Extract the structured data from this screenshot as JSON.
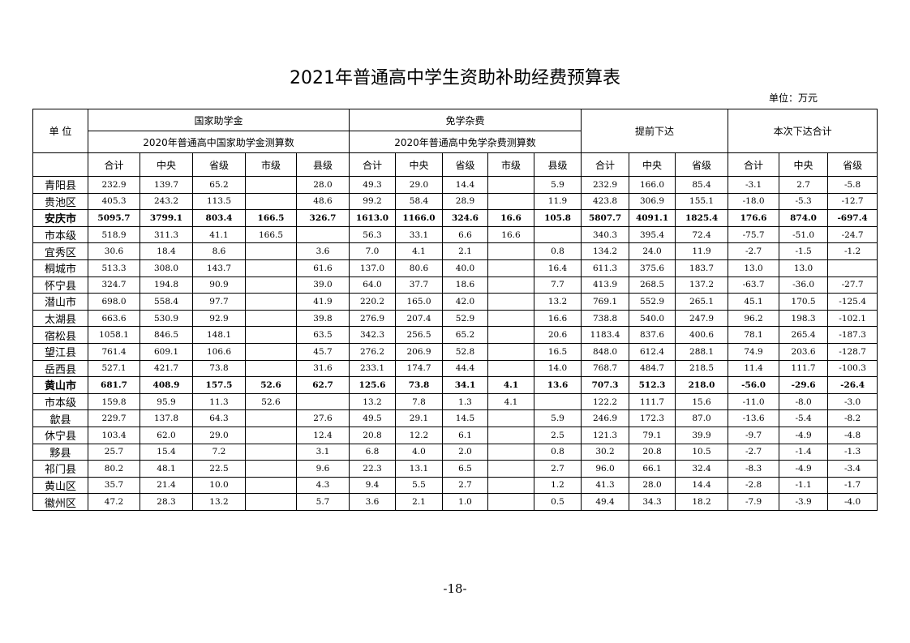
{
  "title": "2021年普通高中学生资助补助经费预算表",
  "unit": "单位：万元",
  "headers": {
    "unit_col": "单 位",
    "group1": "国家助学金",
    "group1_sub": "2020年普通高中国家助学金测算数",
    "group2": "免学杂费",
    "group2_sub": "2020年普通高中免学杂费测算数",
    "group3": "提前下达",
    "group4": "本次下达合计",
    "cols": [
      "合计",
      "中央",
      "省级",
      "市级",
      "县级",
      "合计",
      "中央",
      "省级",
      "市级",
      "县级",
      "合计",
      "中央",
      "省级",
      "合计",
      "中央",
      "省级"
    ]
  },
  "rows": [
    {
      "name": "青阳县",
      "bold": false,
      "v": [
        "232.9",
        "139.7",
        "65.2",
        "",
        "28.0",
        "49.3",
        "29.0",
        "14.4",
        "",
        "5.9",
        "232.9",
        "166.0",
        "85.4",
        "-3.1",
        "2.7",
        "-5.8"
      ]
    },
    {
      "name": "贵池区",
      "bold": false,
      "v": [
        "405.3",
        "243.2",
        "113.5",
        "",
        "48.6",
        "99.2",
        "58.4",
        "28.9",
        "",
        "11.9",
        "423.8",
        "306.9",
        "155.1",
        "-18.0",
        "-5.3",
        "-12.7"
      ]
    },
    {
      "name": "安庆市",
      "bold": true,
      "v": [
        "5095.7",
        "3799.1",
        "803.4",
        "166.5",
        "326.7",
        "1613.0",
        "1166.0",
        "324.6",
        "16.6",
        "105.8",
        "5807.7",
        "4091.1",
        "1825.4",
        "176.6",
        "874.0",
        "-697.4"
      ]
    },
    {
      "name": "市本级",
      "bold": false,
      "v": [
        "518.9",
        "311.3",
        "41.1",
        "166.5",
        "",
        "56.3",
        "33.1",
        "6.6",
        "16.6",
        "",
        "340.3",
        "395.4",
        "72.4",
        "-75.7",
        "-51.0",
        "-24.7"
      ]
    },
    {
      "name": "宜秀区",
      "bold": false,
      "v": [
        "30.6",
        "18.4",
        "8.6",
        "",
        "3.6",
        "7.0",
        "4.1",
        "2.1",
        "",
        "0.8",
        "134.2",
        "24.0",
        "11.9",
        "-2.7",
        "-1.5",
        "-1.2"
      ]
    },
    {
      "name": "桐城市",
      "bold": false,
      "v": [
        "513.3",
        "308.0",
        "143.7",
        "",
        "61.6",
        "137.0",
        "80.6",
        "40.0",
        "",
        "16.4",
        "611.3",
        "375.6",
        "183.7",
        "13.0",
        "13.0",
        ""
      ]
    },
    {
      "name": "怀宁县",
      "bold": false,
      "v": [
        "324.7",
        "194.8",
        "90.9",
        "",
        "39.0",
        "64.0",
        "37.7",
        "18.6",
        "",
        "7.7",
        "413.9",
        "268.5",
        "137.2",
        "-63.7",
        "-36.0",
        "-27.7"
      ]
    },
    {
      "name": "潜山市",
      "bold": false,
      "v": [
        "698.0",
        "558.4",
        "97.7",
        "",
        "41.9",
        "220.2",
        "165.0",
        "42.0",
        "",
        "13.2",
        "769.1",
        "552.9",
        "265.1",
        "45.1",
        "170.5",
        "-125.4"
      ]
    },
    {
      "name": "太湖县",
      "bold": false,
      "v": [
        "663.6",
        "530.9",
        "92.9",
        "",
        "39.8",
        "276.9",
        "207.4",
        "52.9",
        "",
        "16.6",
        "738.8",
        "540.0",
        "247.9",
        "96.2",
        "198.3",
        "-102.1"
      ]
    },
    {
      "name": "宿松县",
      "bold": false,
      "v": [
        "1058.1",
        "846.5",
        "148.1",
        "",
        "63.5",
        "342.3",
        "256.5",
        "65.2",
        "",
        "20.6",
        "1183.4",
        "837.6",
        "400.6",
        "78.1",
        "265.4",
        "-187.3"
      ]
    },
    {
      "name": "望江县",
      "bold": false,
      "v": [
        "761.4",
        "609.1",
        "106.6",
        "",
        "45.7",
        "276.2",
        "206.9",
        "52.8",
        "",
        "16.5",
        "848.0",
        "612.4",
        "288.1",
        "74.9",
        "203.6",
        "-128.7"
      ]
    },
    {
      "name": "岳西县",
      "bold": false,
      "v": [
        "527.1",
        "421.7",
        "73.8",
        "",
        "31.6",
        "233.1",
        "174.7",
        "44.4",
        "",
        "14.0",
        "768.7",
        "484.7",
        "218.5",
        "11.4",
        "111.7",
        "-100.3"
      ]
    },
    {
      "name": "黄山市",
      "bold": true,
      "v": [
        "681.7",
        "408.9",
        "157.5",
        "52.6",
        "62.7",
        "125.6",
        "73.8",
        "34.1",
        "4.1",
        "13.6",
        "707.3",
        "512.3",
        "218.0",
        "-56.0",
        "-29.6",
        "-26.4"
      ]
    },
    {
      "name": "市本级",
      "bold": false,
      "v": [
        "159.8",
        "95.9",
        "11.3",
        "52.6",
        "",
        "13.2",
        "7.8",
        "1.3",
        "4.1",
        "",
        "122.2",
        "111.7",
        "15.6",
        "-11.0",
        "-8.0",
        "-3.0"
      ]
    },
    {
      "name": "歙县",
      "bold": false,
      "v": [
        "229.7",
        "137.8",
        "64.3",
        "",
        "27.6",
        "49.5",
        "29.1",
        "14.5",
        "",
        "5.9",
        "246.9",
        "172.3",
        "87.0",
        "-13.6",
        "-5.4",
        "-8.2"
      ]
    },
    {
      "name": "休宁县",
      "bold": false,
      "v": [
        "103.4",
        "62.0",
        "29.0",
        "",
        "12.4",
        "20.8",
        "12.2",
        "6.1",
        "",
        "2.5",
        "121.3",
        "79.1",
        "39.9",
        "-9.7",
        "-4.9",
        "-4.8"
      ]
    },
    {
      "name": "黟县",
      "bold": false,
      "v": [
        "25.7",
        "15.4",
        "7.2",
        "",
        "3.1",
        "6.8",
        "4.0",
        "2.0",
        "",
        "0.8",
        "30.2",
        "20.8",
        "10.5",
        "-2.7",
        "-1.4",
        "-1.3"
      ]
    },
    {
      "name": "祁门县",
      "bold": false,
      "v": [
        "80.2",
        "48.1",
        "22.5",
        "",
        "9.6",
        "22.3",
        "13.1",
        "6.5",
        "",
        "2.7",
        "96.0",
        "66.1",
        "32.4",
        "-8.3",
        "-4.9",
        "-3.4"
      ]
    },
    {
      "name": "黄山区",
      "bold": false,
      "v": [
        "35.7",
        "21.4",
        "10.0",
        "",
        "4.3",
        "9.4",
        "5.5",
        "2.7",
        "",
        "1.2",
        "41.3",
        "28.0",
        "14.4",
        "-2.8",
        "-1.1",
        "-1.7"
      ]
    },
    {
      "name": "徽州区",
      "bold": false,
      "v": [
        "47.2",
        "28.3",
        "13.2",
        "",
        "5.7",
        "3.6",
        "2.1",
        "1.0",
        "",
        "0.5",
        "49.4",
        "34.3",
        "18.2",
        "-7.9",
        "-3.9",
        "-4.0"
      ]
    }
  ],
  "page_number": "-18-"
}
